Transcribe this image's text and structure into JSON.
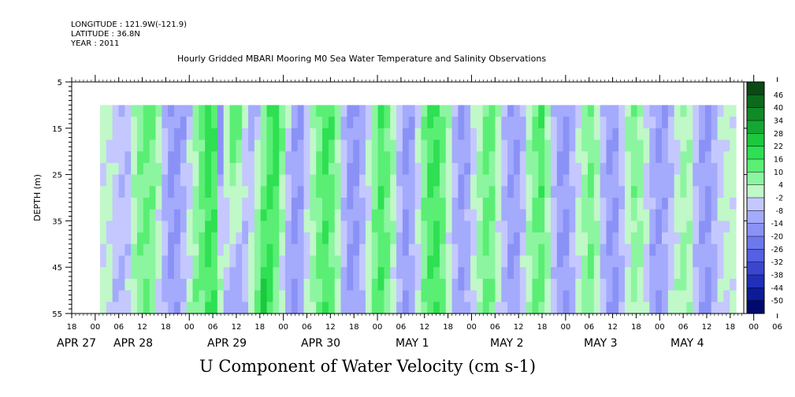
{
  "header": {
    "longitude": "LONGITUDE : 121.9W(-121.9)",
    "latitude": "LATITUDE : 36.8N",
    "year": "YEAR : 2011"
  },
  "chart_data": {
    "type": "heatmap",
    "title": "Hourly Gridded MBARI Mooring M0 Sea Water Temperature and Salinity Observations",
    "xlabel": "U Component of Water Velocity (cm s-1)",
    "ylabel": "DEPTH (m)",
    "ylim": [
      55,
      5
    ],
    "y_ticks": [
      5,
      15,
      25,
      35,
      45,
      55
    ],
    "data_depth_range": [
      10,
      55
    ],
    "x_hour_ticks": [
      "18",
      "00",
      "06",
      "12",
      "18",
      "00",
      "06",
      "12",
      "18",
      "00",
      "06",
      "12",
      "18",
      "00",
      "06",
      "12",
      "18",
      "00",
      "06",
      "12",
      "18",
      "00",
      "06",
      "12",
      "18",
      "00",
      "06",
      "12",
      "18",
      "00",
      "06",
      "12",
      "18"
    ],
    "x_date_labels": [
      "APR 27",
      "APR 28",
      "APR 29",
      "APR 30",
      "MAY  1",
      "MAY  2",
      "MAY  3",
      "MAY  4"
    ],
    "colorbar_levels": [
      "46",
      "40",
      "34",
      "28",
      "22",
      "16",
      "10",
      "4",
      "-2",
      "-8",
      "-14",
      "-20",
      "-26",
      "-32",
      "-38",
      "-44",
      "-50"
    ],
    "colorbar_colors": [
      "#0a4a14",
      "#0c6a1c",
      "#108a26",
      "#14a832",
      "#1bc83e",
      "#2ee052",
      "#5aee74",
      "#8cf5a0",
      "#c0f8c8",
      "#c4c8ff",
      "#a4aafc",
      "#8a92f6",
      "#6e78ee",
      "#5560e2",
      "#3a46d0",
      "#2030b8",
      "#0c1c98",
      "#000a6e"
    ],
    "u_profile_surface": [
      0,
      0,
      -4,
      -6,
      -8,
      2,
      8,
      12,
      10,
      4,
      -6,
      -14,
      -16,
      -12,
      -6,
      4,
      12,
      20,
      14,
      -20,
      2,
      16,
      12,
      -2,
      -10,
      -6,
      4,
      14,
      20,
      10,
      -4,
      -12,
      -14,
      -6,
      2,
      10,
      16,
      14,
      6,
      -6,
      -14,
      -16,
      -12,
      -4,
      6,
      14,
      12,
      4,
      -6,
      -14,
      -12,
      -2,
      8,
      16,
      18,
      10,
      2,
      -8,
      -14,
      -12,
      -4,
      4,
      12,
      10,
      2,
      -6,
      -12,
      -14,
      -8,
      2,
      10,
      14,
      6,
      -6,
      -14,
      -16,
      -10,
      -2,
      6,
      10,
      4,
      -8,
      -14,
      -12,
      -4,
      4,
      8,
      6,
      -2,
      -10,
      -14,
      -12,
      -8,
      -2,
      4,
      2,
      -6,
      -12,
      -14,
      -10,
      -4,
      0,
      0
    ],
    "u_profile_deep": [
      0,
      0,
      -6,
      -8,
      -4,
      4,
      8,
      10,
      6,
      -2,
      -10,
      -14,
      -12,
      -6,
      2,
      8,
      12,
      16,
      14,
      4,
      -6,
      -12,
      -14,
      -8,
      2,
      12,
      22,
      18,
      8,
      -4,
      -12,
      -16,
      -10,
      -2,
      6,
      12,
      14,
      10,
      2,
      -8,
      -14,
      -12,
      -6,
      2,
      10,
      14,
      10,
      0,
      -10,
      -14,
      -10,
      -2,
      8,
      14,
      16,
      10,
      0,
      -8,
      -12,
      -10,
      -2,
      6,
      12,
      8,
      0,
      -8,
      -14,
      -12,
      -4,
      4,
      10,
      12,
      4,
      -6,
      -12,
      -14,
      -8,
      0,
      6,
      8,
      2,
      -8,
      -14,
      -16,
      -10,
      -2,
      6,
      4,
      -4,
      -12,
      -14,
      -10,
      -4,
      2,
      6,
      2,
      -6,
      -12,
      -14,
      -10,
      -4,
      0,
      0
    ]
  }
}
